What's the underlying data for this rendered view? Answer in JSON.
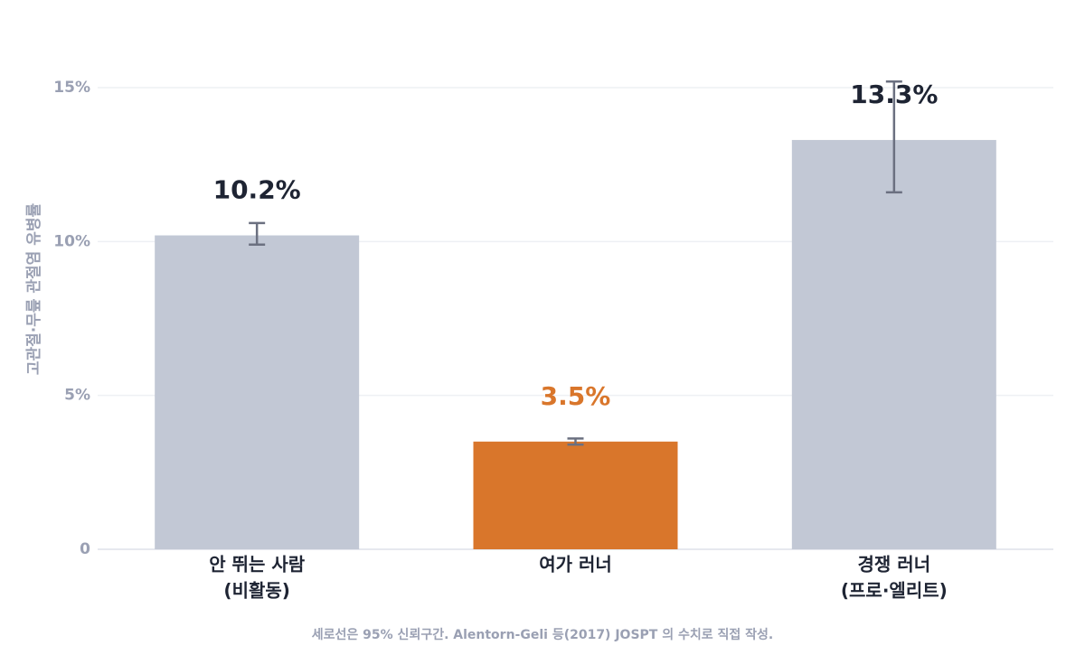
{
  "chart_data": {
    "type": "bar",
    "y_label": "고관절·무릎 관절염 유병률",
    "categories": [
      [
        "안 뛰는 사람",
        "(비활동)"
      ],
      [
        "여가 러너"
      ],
      [
        "경쟁 러너",
        "(프로·엘리트)"
      ]
    ],
    "values": [
      10.2,
      3.5,
      13.3
    ],
    "value_labels": [
      "10.2%",
      "3.5%",
      "13.3%"
    ],
    "ci_low": [
      9.9,
      3.4,
      11.6
    ],
    "ci_high": [
      10.6,
      3.6,
      15.2
    ],
    "colors": [
      "#c2c8d5",
      "#d9762b",
      "#c2c8d5"
    ],
    "label_colors": [
      "#1e2433",
      "#d9762b",
      "#1e2433"
    ],
    "ylim": [
      0,
      15.5
    ],
    "yticks": [
      0,
      {
        "value": 5,
        "label": "5%"
      },
      {
        "value": 10,
        "label": "10%"
      },
      {
        "value": 15,
        "label": "15%"
      }
    ],
    "grid": true,
    "footnote": "세로선은 95% 신뢰구간.  Alentorn-Geli 등(2017) JOSPT 의 수치로 직접 작성."
  }
}
